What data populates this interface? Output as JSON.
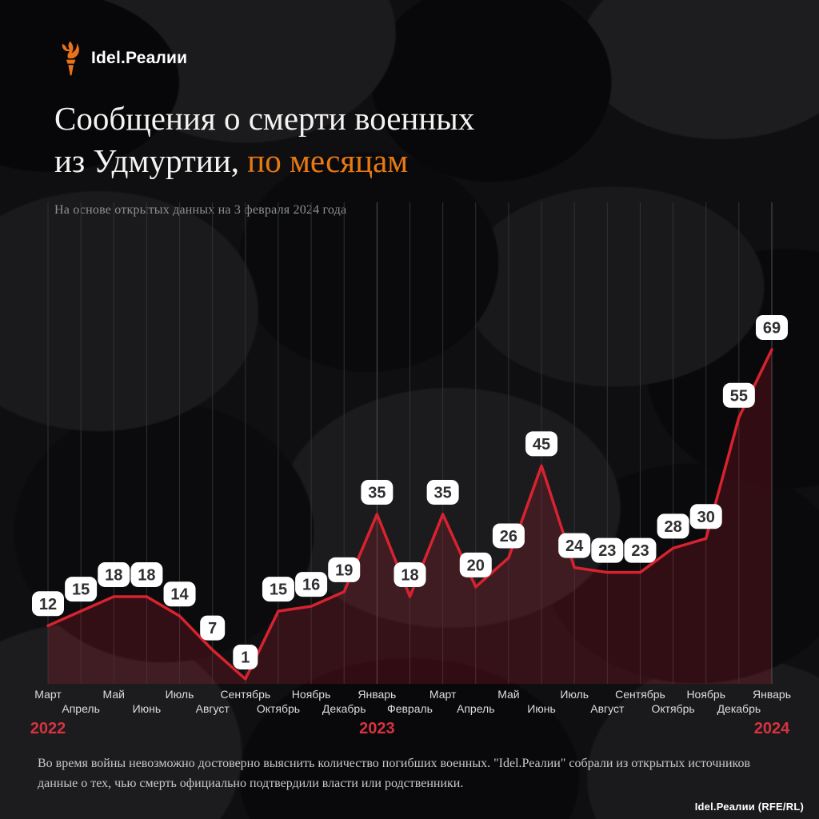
{
  "colors": {
    "accent_orange": "#e87912",
    "line_red": "#d7232f",
    "area_fill": "rgba(200,30,50,0.21)",
    "year_red": "#d63340",
    "grid_line": "#2c3335",
    "grid_line_year": "#4b5551",
    "badge_bg": "#ffffff",
    "badge_text": "#2f2f33",
    "month_label": "#dcdcdc"
  },
  "logo": {
    "brand": "Idel.Реалии",
    "icon": "torch-icon"
  },
  "header": {
    "title_line1": "Сообщения о смерти военных",
    "title_line2": "из Удмуртии,",
    "title_accent": "по месяцам",
    "subtitle": "На основе открытых данных на 3 февраля 2024 года"
  },
  "chart_data": {
    "type": "area",
    "title": "Сообщения о смерти военных из Удмуртии, по месяцам",
    "categories": [
      "Март",
      "Апрель",
      "Май",
      "Июнь",
      "Июль",
      "Август",
      "Сентябрь",
      "Октябрь",
      "Ноябрь",
      "Декабрь",
      "Январь",
      "Февраль",
      "Март",
      "Апрель",
      "Май",
      "Июнь",
      "Июль",
      "Август",
      "Сентябрь",
      "Октябрь",
      "Ноябрь",
      "Декабрь",
      "Январь"
    ],
    "values": [
      12,
      15,
      18,
      18,
      14,
      7,
      1,
      15,
      16,
      19,
      35,
      18,
      35,
      20,
      26,
      45,
      24,
      23,
      23,
      28,
      30,
      55,
      69
    ],
    "year_markers": [
      {
        "label": "2022",
        "index": 0
      },
      {
        "label": "2023",
        "index": 10
      },
      {
        "label": "2024",
        "index": 22
      }
    ],
    "ylim": [
      0,
      69
    ],
    "xlabel": "",
    "ylabel": "",
    "grid": "vertical-only",
    "legend": "none",
    "data_labels": "white-rounded-badges-above-points"
  },
  "footer": {
    "note": "Во время войны невозможно достоверно выяснить количество погибших военных. \"Idel.Реалии\" собрали из открытых источников данные о тех, чью смерть официально подтвердили власти или родственники.",
    "credit": "Idel.Реалии (RFE/RL)"
  }
}
